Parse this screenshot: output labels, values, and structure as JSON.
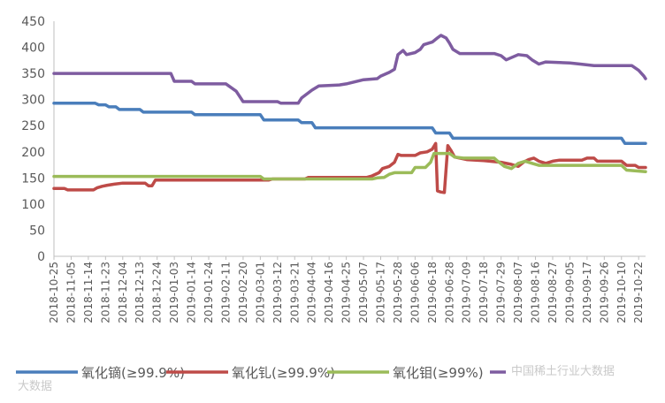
{
  "chart_data": {
    "type": "line",
    "title": "",
    "xlabel": "",
    "ylabel": "",
    "ylim": [
      0,
      450
    ],
    "yticks": [
      0,
      50,
      100,
      150,
      200,
      250,
      300,
      350,
      400,
      450
    ],
    "grid": false,
    "legend_position": "bottom",
    "categories": [
      "2018-10-25",
      "2018-11-05",
      "2018-11-14",
      "2018-11-23",
      "2018-12-04",
      "2018-12-13",
      "2018-12-24",
      "2019-01-03",
      "2019-01-14",
      "2019-01-24",
      "2019-02-11",
      "2019-02-20",
      "2019-03-01",
      "2019-03-12",
      "2019-03-21",
      "2019-04-04",
      "2019-04-16",
      "2019-04-25",
      "2019-05-07",
      "2019-05-17",
      "2019-05-28",
      "2019-06-06",
      "2019-06-18",
      "2019-06-28",
      "2019-07-09",
      "2019-07-18",
      "2019-07-29",
      "2019-08-07",
      "2019-08-16",
      "2019-08-27",
      "2019-09-05",
      "2019-09-17",
      "2019-09-26",
      "2019-10-10",
      "2019-10-22"
    ],
    "series": [
      {
        "name": "氧化镝(≥99.9%)",
        "color": "#4a7ebb",
        "points": [
          [
            0,
            293
          ],
          [
            2.4,
            293
          ],
          [
            2.6,
            290
          ],
          [
            3.0,
            290
          ],
          [
            3.2,
            286
          ],
          [
            3.6,
            286
          ],
          [
            3.8,
            281
          ],
          [
            5.0,
            281
          ],
          [
            5.2,
            276
          ],
          [
            8.0,
            276
          ],
          [
            8.2,
            271
          ],
          [
            12.0,
            271
          ],
          [
            12.2,
            261
          ],
          [
            14.2,
            261
          ],
          [
            14.4,
            256
          ],
          [
            15.0,
            256
          ],
          [
            15.2,
            246
          ],
          [
            22.0,
            246
          ],
          [
            22.2,
            236
          ],
          [
            23.0,
            236
          ],
          [
            23.2,
            226
          ],
          [
            33.0,
            226
          ],
          [
            33.2,
            216
          ],
          [
            34.4,
            216
          ]
        ]
      },
      {
        "name": "氧化钆(≥99.9%)",
        "color": "#be4b48",
        "points": [
          [
            0,
            130
          ],
          [
            0.6,
            130
          ],
          [
            0.8,
            127
          ],
          [
            2.3,
            127
          ],
          [
            2.5,
            131
          ],
          [
            2.8,
            134
          ],
          [
            3.1,
            136
          ],
          [
            3.5,
            138
          ],
          [
            4.0,
            140
          ],
          [
            5.3,
            140
          ],
          [
            5.5,
            135
          ],
          [
            5.7,
            135
          ],
          [
            5.9,
            146
          ],
          [
            12.5,
            146
          ],
          [
            12.7,
            148
          ],
          [
            14.6,
            148
          ],
          [
            14.8,
            151
          ],
          [
            18.2,
            151
          ],
          [
            18.5,
            154
          ],
          [
            18.9,
            160
          ],
          [
            19.1,
            168
          ],
          [
            19.5,
            172
          ],
          [
            19.8,
            180
          ],
          [
            20.0,
            195
          ],
          [
            20.2,
            193
          ],
          [
            21.0,
            193
          ],
          [
            21.3,
            198
          ],
          [
            21.7,
            200
          ],
          [
            22.0,
            205
          ],
          [
            22.2,
            216
          ],
          [
            22.3,
            125
          ],
          [
            22.5,
            123
          ],
          [
            22.7,
            122
          ],
          [
            22.9,
            212
          ],
          [
            23.1,
            202
          ],
          [
            23.3,
            190
          ],
          [
            24.0,
            185
          ],
          [
            25.0,
            183
          ],
          [
            26.0,
            180
          ],
          [
            26.6,
            176
          ],
          [
            27.0,
            172
          ],
          [
            27.3,
            180
          ],
          [
            27.6,
            185
          ],
          [
            27.9,
            188
          ],
          [
            28.2,
            182
          ],
          [
            28.6,
            178
          ],
          [
            29.0,
            182
          ],
          [
            29.4,
            184
          ],
          [
            30.7,
            184
          ],
          [
            31.0,
            188
          ],
          [
            31.4,
            188
          ],
          [
            31.6,
            182
          ],
          [
            33.0,
            182
          ],
          [
            33.3,
            174
          ],
          [
            33.8,
            174
          ],
          [
            34.0,
            170
          ],
          [
            34.4,
            170
          ]
        ]
      },
      {
        "name": "氧化钼(≥99%)",
        "color": "#9bbb59",
        "points": [
          [
            0,
            153
          ],
          [
            12.0,
            153
          ],
          [
            12.2,
            148
          ],
          [
            18.5,
            148
          ],
          [
            18.8,
            150
          ],
          [
            19.2,
            151
          ],
          [
            19.5,
            157
          ],
          [
            19.8,
            160
          ],
          [
            20.8,
            160
          ],
          [
            21.0,
            170
          ],
          [
            21.6,
            170
          ],
          [
            21.9,
            180
          ],
          [
            22.1,
            197
          ],
          [
            23.0,
            197
          ],
          [
            23.3,
            190
          ],
          [
            23.8,
            188
          ],
          [
            25.6,
            188
          ],
          [
            25.8,
            182
          ],
          [
            26.2,
            172
          ],
          [
            26.6,
            168
          ],
          [
            27.0,
            178
          ],
          [
            27.4,
            182
          ],
          [
            27.8,
            178
          ],
          [
            28.2,
            174
          ],
          [
            33.0,
            174
          ],
          [
            33.3,
            165
          ],
          [
            34.4,
            162
          ]
        ]
      },
      {
        "name": "",
        "color": "#7e5ca0",
        "points": [
          [
            0,
            350
          ],
          [
            6.8,
            350
          ],
          [
            7.0,
            335
          ],
          [
            8.0,
            335
          ],
          [
            8.2,
            330
          ],
          [
            10.0,
            330
          ],
          [
            10.6,
            316
          ],
          [
            11.0,
            296
          ],
          [
            13.0,
            296
          ],
          [
            13.2,
            293
          ],
          [
            14.2,
            293
          ],
          [
            14.4,
            303
          ],
          [
            15.0,
            318
          ],
          [
            15.4,
            326
          ],
          [
            16.6,
            328
          ],
          [
            17.0,
            330
          ],
          [
            18.0,
            338
          ],
          [
            18.8,
            340
          ],
          [
            19.0,
            345
          ],
          [
            19.5,
            352
          ],
          [
            19.8,
            358
          ],
          [
            20.0,
            386
          ],
          [
            20.3,
            394
          ],
          [
            20.5,
            386
          ],
          [
            21.0,
            390
          ],
          [
            21.3,
            396
          ],
          [
            21.5,
            405
          ],
          [
            22.0,
            410
          ],
          [
            22.3,
            418
          ],
          [
            22.5,
            423
          ],
          [
            22.8,
            418
          ],
          [
            23.0,
            408
          ],
          [
            23.2,
            396
          ],
          [
            23.6,
            388
          ],
          [
            25.6,
            388
          ],
          [
            26.0,
            384
          ],
          [
            26.3,
            376
          ],
          [
            27.0,
            386
          ],
          [
            27.5,
            384
          ],
          [
            27.8,
            376
          ],
          [
            28.2,
            368
          ],
          [
            28.6,
            372
          ],
          [
            30.0,
            370
          ],
          [
            30.6,
            368
          ],
          [
            31.4,
            365
          ],
          [
            33.6,
            365
          ],
          [
            34.0,
            356
          ],
          [
            34.3,
            345
          ],
          [
            34.4,
            340
          ]
        ]
      }
    ]
  },
  "watermark_texts": [
    "中国稀土行业大数据",
    "大数据"
  ]
}
